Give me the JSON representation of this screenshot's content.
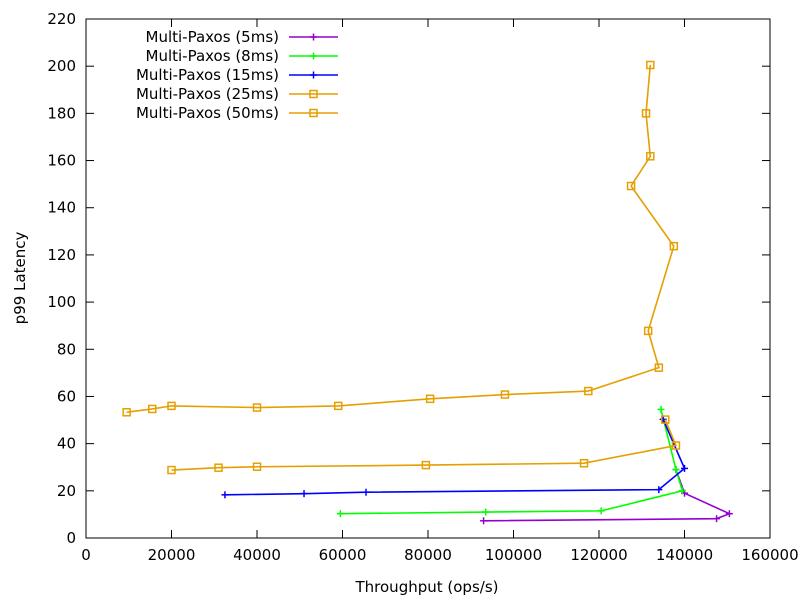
{
  "chart_data": {
    "type": "line",
    "title": "",
    "xlabel": "Throughput (ops/s)",
    "ylabel": "p99 Latency",
    "xlim": [
      0,
      160000
    ],
    "ylim": [
      0,
      220
    ],
    "x_ticks": [
      0,
      20000,
      40000,
      60000,
      80000,
      100000,
      120000,
      140000,
      160000
    ],
    "y_ticks": [
      0,
      20,
      40,
      60,
      80,
      100,
      120,
      140,
      160,
      180,
      200,
      220
    ],
    "x_tick_labels": [
      "0",
      "20000",
      "40000",
      "60000",
      "80000",
      "100000",
      "120000",
      "140000",
      "160000"
    ],
    "y_tick_labels": [
      "0",
      "20",
      "40",
      "60",
      "80",
      "100",
      "120",
      "140",
      "160",
      "180",
      "200",
      "220"
    ],
    "grid": false,
    "legend_position": "top-left",
    "series": [
      {
        "name": "Multi-Paxos (5ms)",
        "color": "#9400d3",
        "marker": "plus",
        "points": [
          [
            93000,
            7.3
          ],
          [
            147500,
            8.2
          ],
          [
            150500,
            10.3
          ],
          [
            140000,
            19.0
          ],
          [
            138000,
            29.0
          ]
        ]
      },
      {
        "name": "Multi-Paxos (8ms)",
        "color": "#00ff00",
        "marker": "plus",
        "points": [
          [
            59500,
            10.3
          ],
          [
            93500,
            11.0
          ],
          [
            120500,
            11.5
          ],
          [
            139500,
            20.0
          ],
          [
            138000,
            29.0
          ],
          [
            134500,
            54.5
          ]
        ]
      },
      {
        "name": "Multi-Paxos (15ms)",
        "color": "#0000ff",
        "marker": "plus",
        "points": [
          [
            32500,
            18.3
          ],
          [
            51000,
            18.8
          ],
          [
            65500,
            19.4
          ],
          [
            134000,
            20.5
          ],
          [
            140000,
            29.5
          ],
          [
            135000,
            50.3
          ]
        ]
      },
      {
        "name": "Multi-Paxos (25ms)",
        "color": "#e69f00",
        "marker": "square",
        "points": [
          [
            20000,
            28.8
          ],
          [
            31000,
            29.8
          ],
          [
            40000,
            30.2
          ],
          [
            79500,
            30.9
          ],
          [
            116500,
            31.7
          ],
          [
            138000,
            39.2
          ],
          [
            135500,
            50.2
          ]
        ]
      },
      {
        "name": "Multi-Paxos (50ms)",
        "color": "#e69f00",
        "marker": "square",
        "points": [
          [
            9500,
            53.3
          ],
          [
            15500,
            54.7
          ],
          [
            20000,
            56.0
          ],
          [
            40000,
            55.3
          ],
          [
            59000,
            56.0
          ],
          [
            80500,
            59.0
          ],
          [
            98000,
            60.8
          ],
          [
            117500,
            62.3
          ],
          [
            134000,
            72.2
          ],
          [
            131500,
            87.8
          ],
          [
            137500,
            123.7
          ],
          [
            127500,
            149.2
          ],
          [
            132000,
            161.8
          ],
          [
            131000,
            180.0
          ],
          [
            132000,
            200.5
          ]
        ]
      }
    ]
  }
}
